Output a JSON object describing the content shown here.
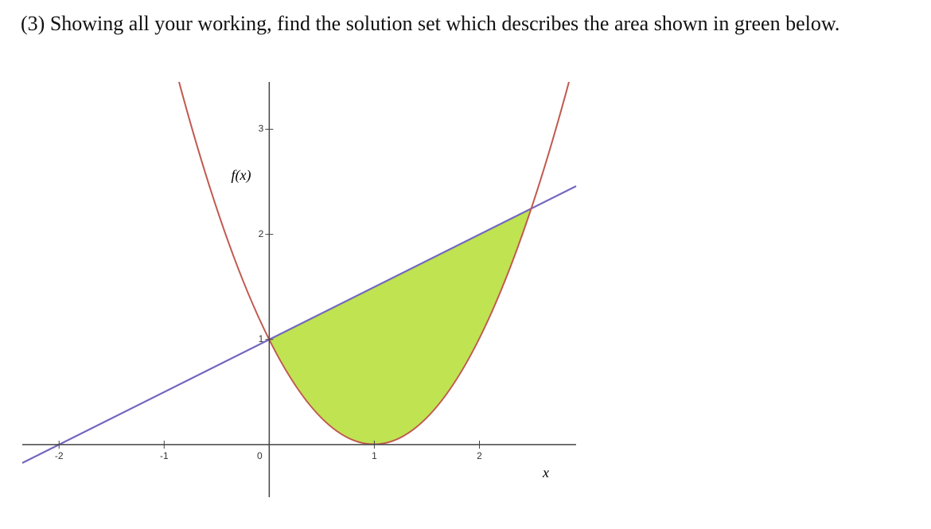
{
  "question": "(3) Showing all your working, find the solution set which describes the area shown in green below.",
  "chart_data": {
    "type": "function",
    "x_label": "x",
    "y_label": "f(x)",
    "xlim": [
      -2.35,
      2.92
    ],
    "ylim": [
      -0.5,
      3.45
    ],
    "xticks": [
      -2,
      -1,
      0,
      1,
      2
    ],
    "yticks": [
      1,
      2,
      3
    ]
  }
}
